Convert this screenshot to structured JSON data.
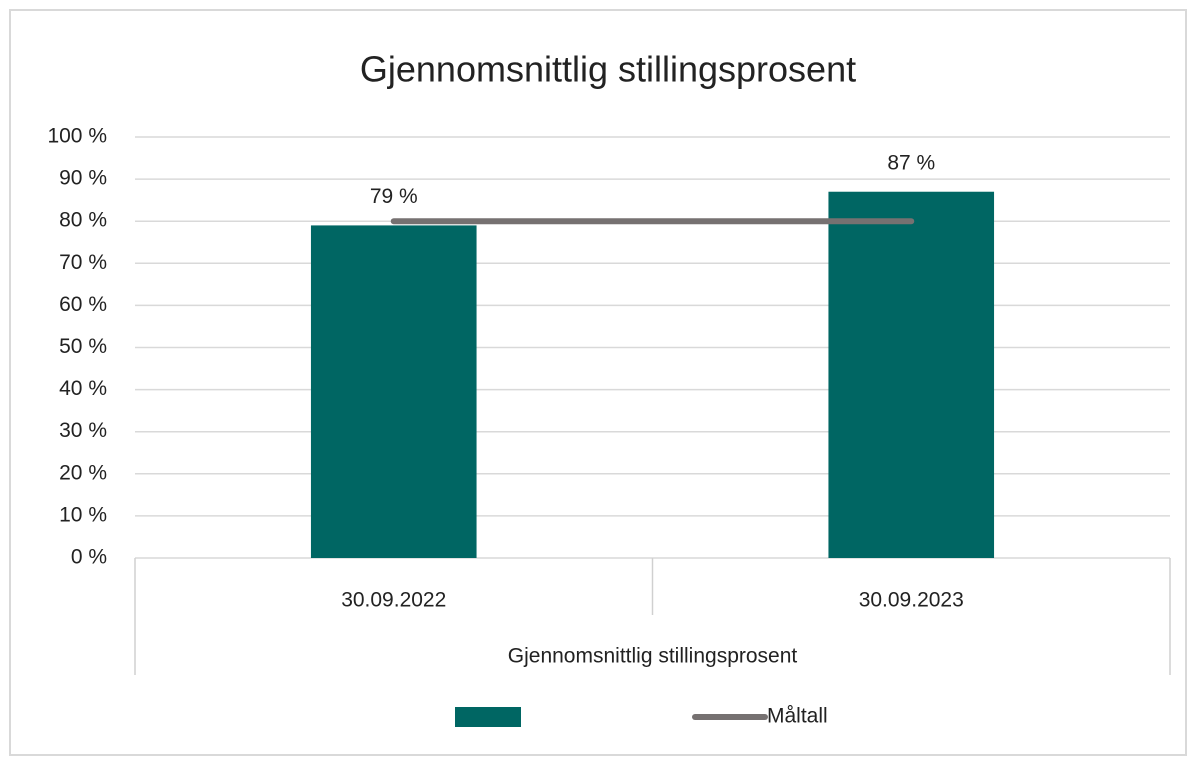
{
  "chart_data": {
    "type": "bar",
    "title": "Gjennomsnittlig stillingsprosent",
    "categories": [
      "30.09.2022",
      "30.09.2023"
    ],
    "group_label": "Gjennomsnittlig stillingsprosent",
    "series": [
      {
        "type": "bar",
        "color": "#006663",
        "values": [
          79,
          87
        ],
        "value_labels": [
          "79 %",
          "87 %"
        ]
      },
      {
        "name": "Måltall",
        "type": "line",
        "color": "#767171",
        "values": [
          80,
          80
        ]
      }
    ],
    "ylim": [
      0,
      100
    ],
    "yticks": [
      {
        "value": 0,
        "label": "0 %"
      },
      {
        "value": 10,
        "label": "10 %"
      },
      {
        "value": 20,
        "label": "20 %"
      },
      {
        "value": 30,
        "label": "30 %"
      },
      {
        "value": 40,
        "label": "40 %"
      },
      {
        "value": 50,
        "label": "50 %"
      },
      {
        "value": 60,
        "label": "60 %"
      },
      {
        "value": 70,
        "label": "70 %"
      },
      {
        "value": 80,
        "label": "80 %"
      },
      {
        "value": 90,
        "label": "90 %"
      },
      {
        "value": 100,
        "label": "100 %"
      }
    ],
    "grid": true,
    "legend": "bottom"
  }
}
